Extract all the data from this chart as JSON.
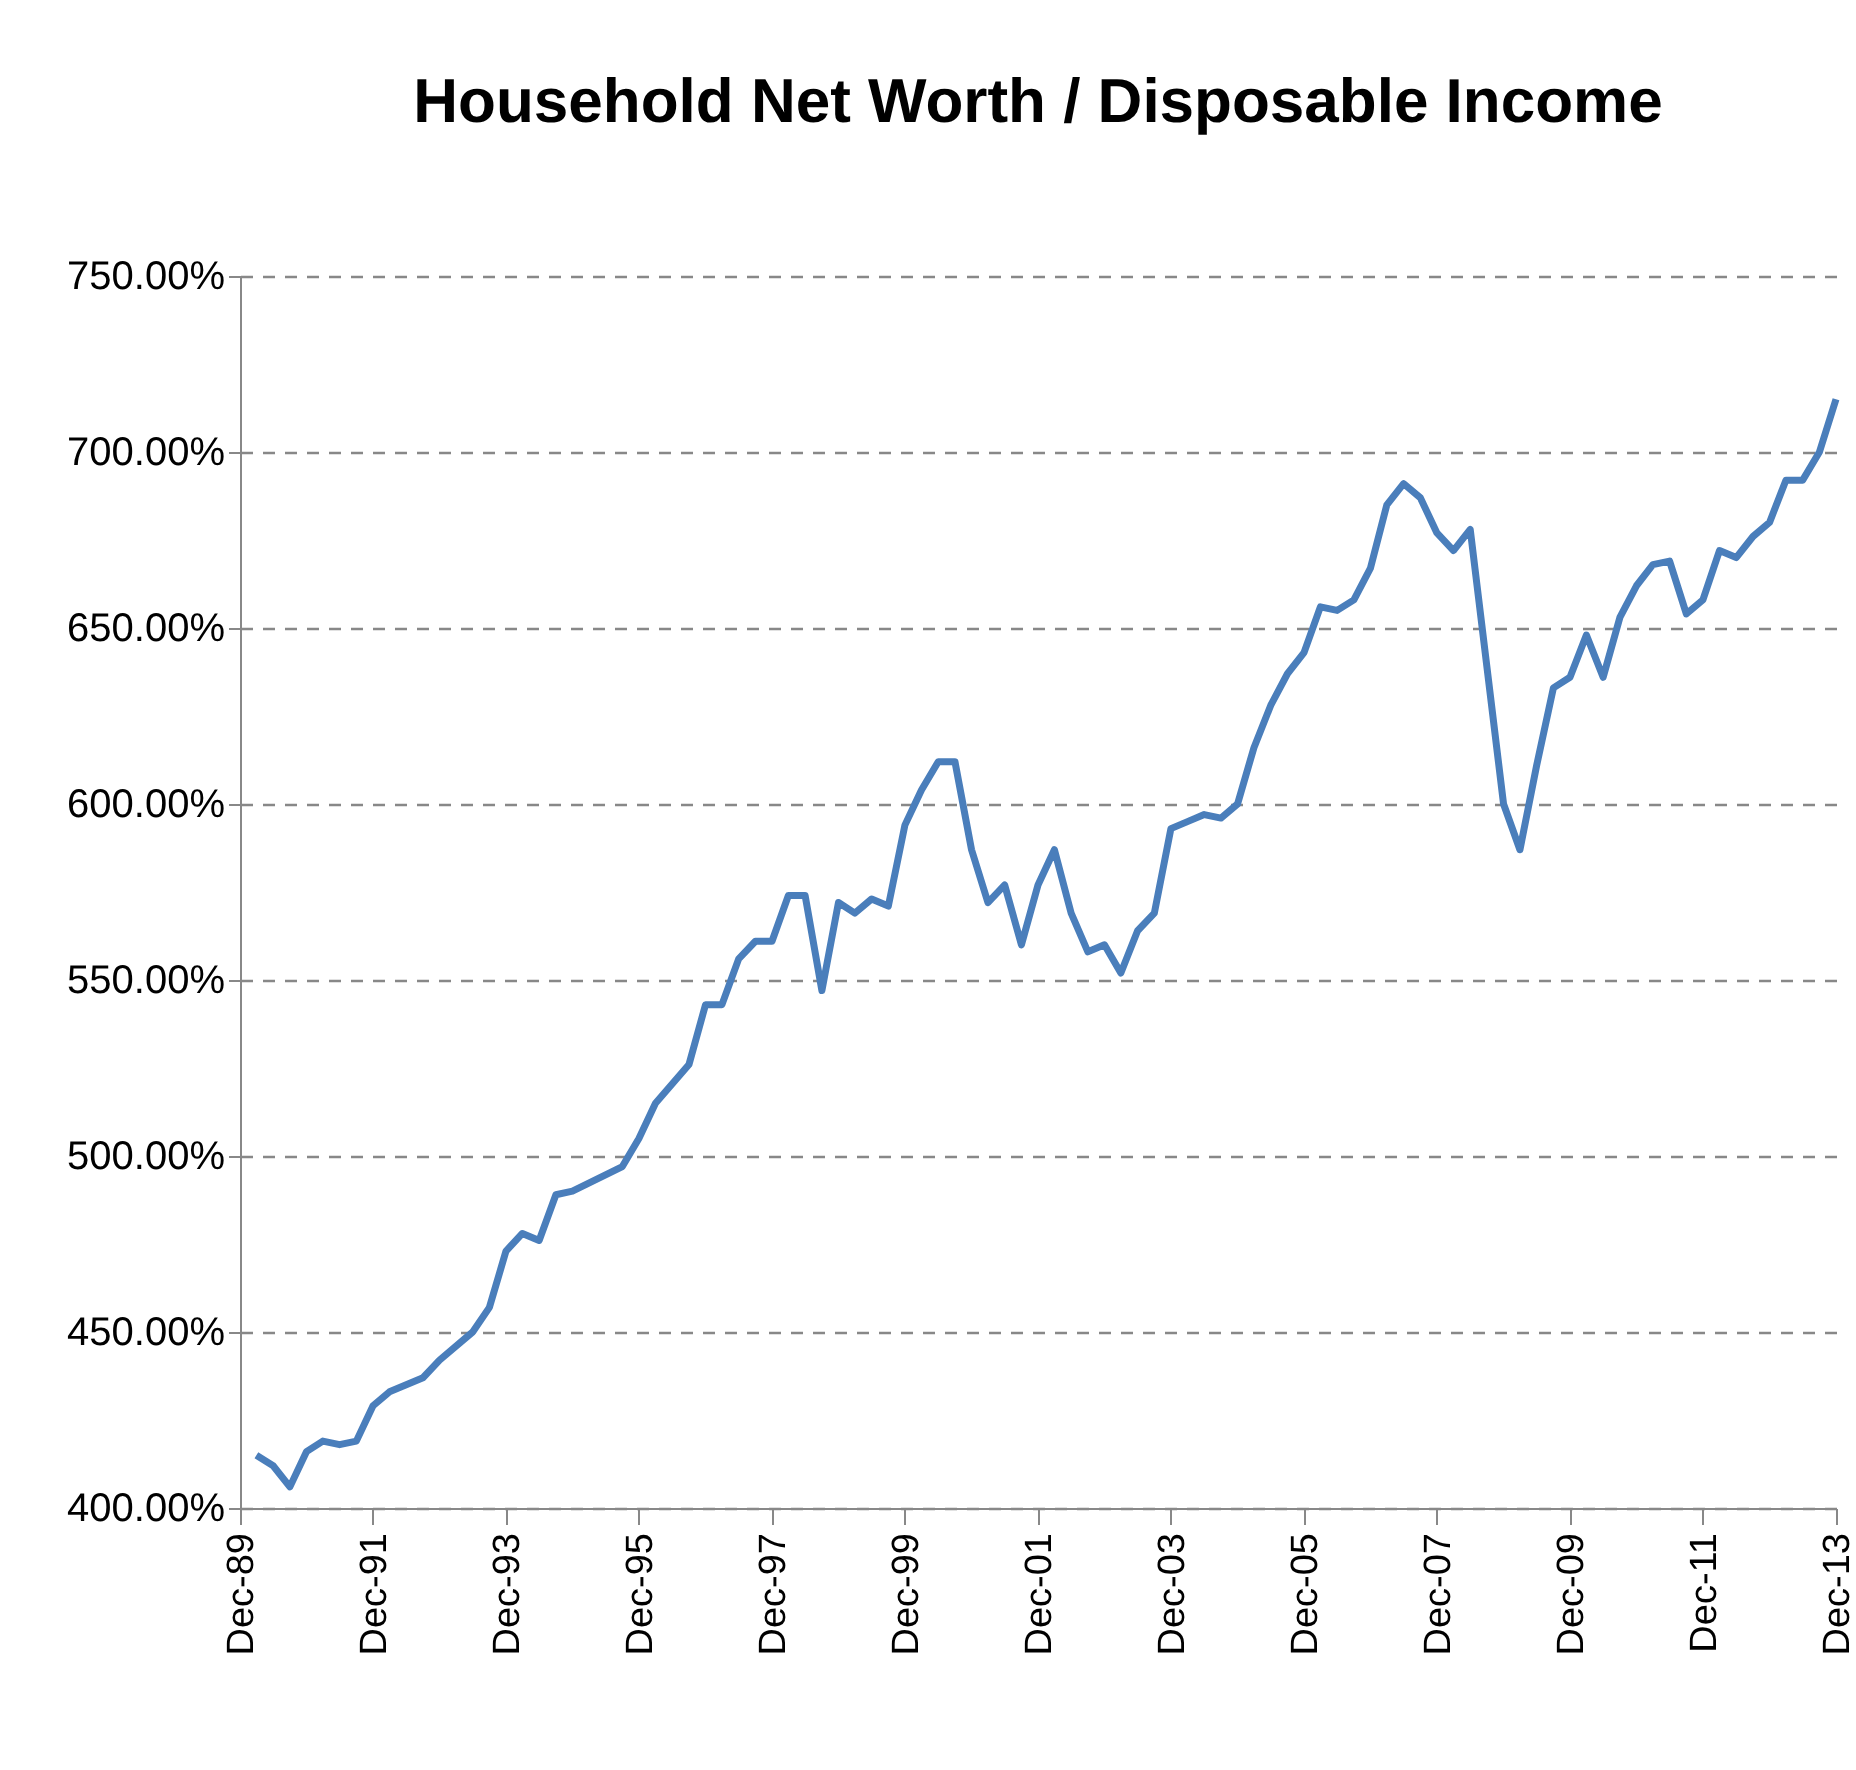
{
  "chart_data": {
    "type": "line",
    "title": "Household Net Worth / Disposable Income",
    "x": [
      "1990-03",
      "1990-06",
      "1990-09",
      "1990-12",
      "1991-03",
      "1991-06",
      "1991-09",
      "1991-12",
      "1992-03",
      "1992-09",
      "1992-12",
      "1993-06",
      "1993-09",
      "1993-12",
      "1994-03",
      "1994-06",
      "1994-09",
      "1994-12",
      "1995-09",
      "1995-12",
      "1996-03",
      "1996-09",
      "1996-12",
      "1997-03",
      "1997-06",
      "1997-09",
      "1997-12",
      "1998-03",
      "1998-06",
      "1998-09",
      "1998-12",
      "1999-03",
      "1999-06",
      "1999-09",
      "1999-12",
      "2000-03",
      "2000-06",
      "2000-09",
      "2000-12",
      "2001-03",
      "2001-06",
      "2001-09",
      "2001-12",
      "2002-03",
      "2002-06",
      "2002-09",
      "2002-12",
      "2003-03",
      "2003-06",
      "2003-09",
      "2003-12",
      "2004-03",
      "2004-06",
      "2004-09",
      "2004-12",
      "2005-03",
      "2005-06",
      "2005-09",
      "2005-12",
      "2006-03",
      "2006-06",
      "2006-09",
      "2006-12",
      "2007-03",
      "2007-06",
      "2007-09",
      "2007-12",
      "2008-03",
      "2008-06",
      "2008-12",
      "2009-03",
      "2009-06",
      "2009-09",
      "2009-12",
      "2010-03",
      "2010-06",
      "2010-09",
      "2010-12",
      "2011-03",
      "2011-06",
      "2011-09",
      "2011-12",
      "2012-03",
      "2012-06",
      "2012-09",
      "2012-12",
      "2013-03",
      "2013-06",
      "2013-09",
      "2013-12"
    ],
    "series": [
      {
        "color": "#4a7ebb",
        "values": [
          415,
          412,
          406,
          416,
          419,
          418,
          419,
          429,
          433,
          437,
          442,
          450,
          457,
          473,
          478,
          476,
          489,
          490,
          497,
          505,
          515,
          526,
          543,
          543,
          556,
          561,
          561,
          574,
          574,
          547,
          572,
          569,
          573,
          571,
          594,
          604,
          612,
          612,
          587,
          572,
          577,
          560,
          577,
          587,
          569,
          558,
          560,
          552,
          564,
          569,
          593,
          595,
          597,
          596,
          600,
          616,
          628,
          637,
          643,
          656,
          655,
          658,
          667,
          685,
          691,
          687,
          677,
          672,
          678,
          600,
          587,
          611,
          633,
          636,
          648,
          636,
          653,
          662,
          668,
          669,
          654,
          658,
          672,
          670,
          676,
          680,
          692,
          692,
          700,
          715
        ]
      }
    ],
    "xlim": [
      "1989-12",
      "2013-12"
    ],
    "xticks": [
      {
        "value": "1989-12",
        "label": "Dec-89"
      },
      {
        "value": "1991-12",
        "label": "Dec-91"
      },
      {
        "value": "1993-12",
        "label": "Dec-93"
      },
      {
        "value": "1995-12",
        "label": "Dec-95"
      },
      {
        "value": "1997-12",
        "label": "Dec-97"
      },
      {
        "value": "1999-12",
        "label": "Dec-99"
      },
      {
        "value": "2001-12",
        "label": "Dec-01"
      },
      {
        "value": "2003-12",
        "label": "Dec-03"
      },
      {
        "value": "2005-12",
        "label": "Dec-05"
      },
      {
        "value": "2007-12",
        "label": "Dec-07"
      },
      {
        "value": "2009-12",
        "label": "Dec-09"
      },
      {
        "value": "2011-12",
        "label": "Dec-11"
      },
      {
        "value": "2013-12",
        "label": "Dec-13"
      }
    ],
    "ylim": [
      400,
      750
    ],
    "yticks": [
      {
        "value": 400,
        "label": "400.00%"
      },
      {
        "value": 450,
        "label": "450.00%"
      },
      {
        "value": 500,
        "label": "500.00%"
      },
      {
        "value": 550,
        "label": "550.00%"
      },
      {
        "value": 600,
        "label": "600.00%"
      },
      {
        "value": 650,
        "label": "650.00%"
      },
      {
        "value": 700,
        "label": "700.00%"
      },
      {
        "value": 750,
        "label": "750.00%"
      }
    ],
    "grid": "y",
    "legend": false,
    "marker": "none",
    "line_style": "solid"
  }
}
